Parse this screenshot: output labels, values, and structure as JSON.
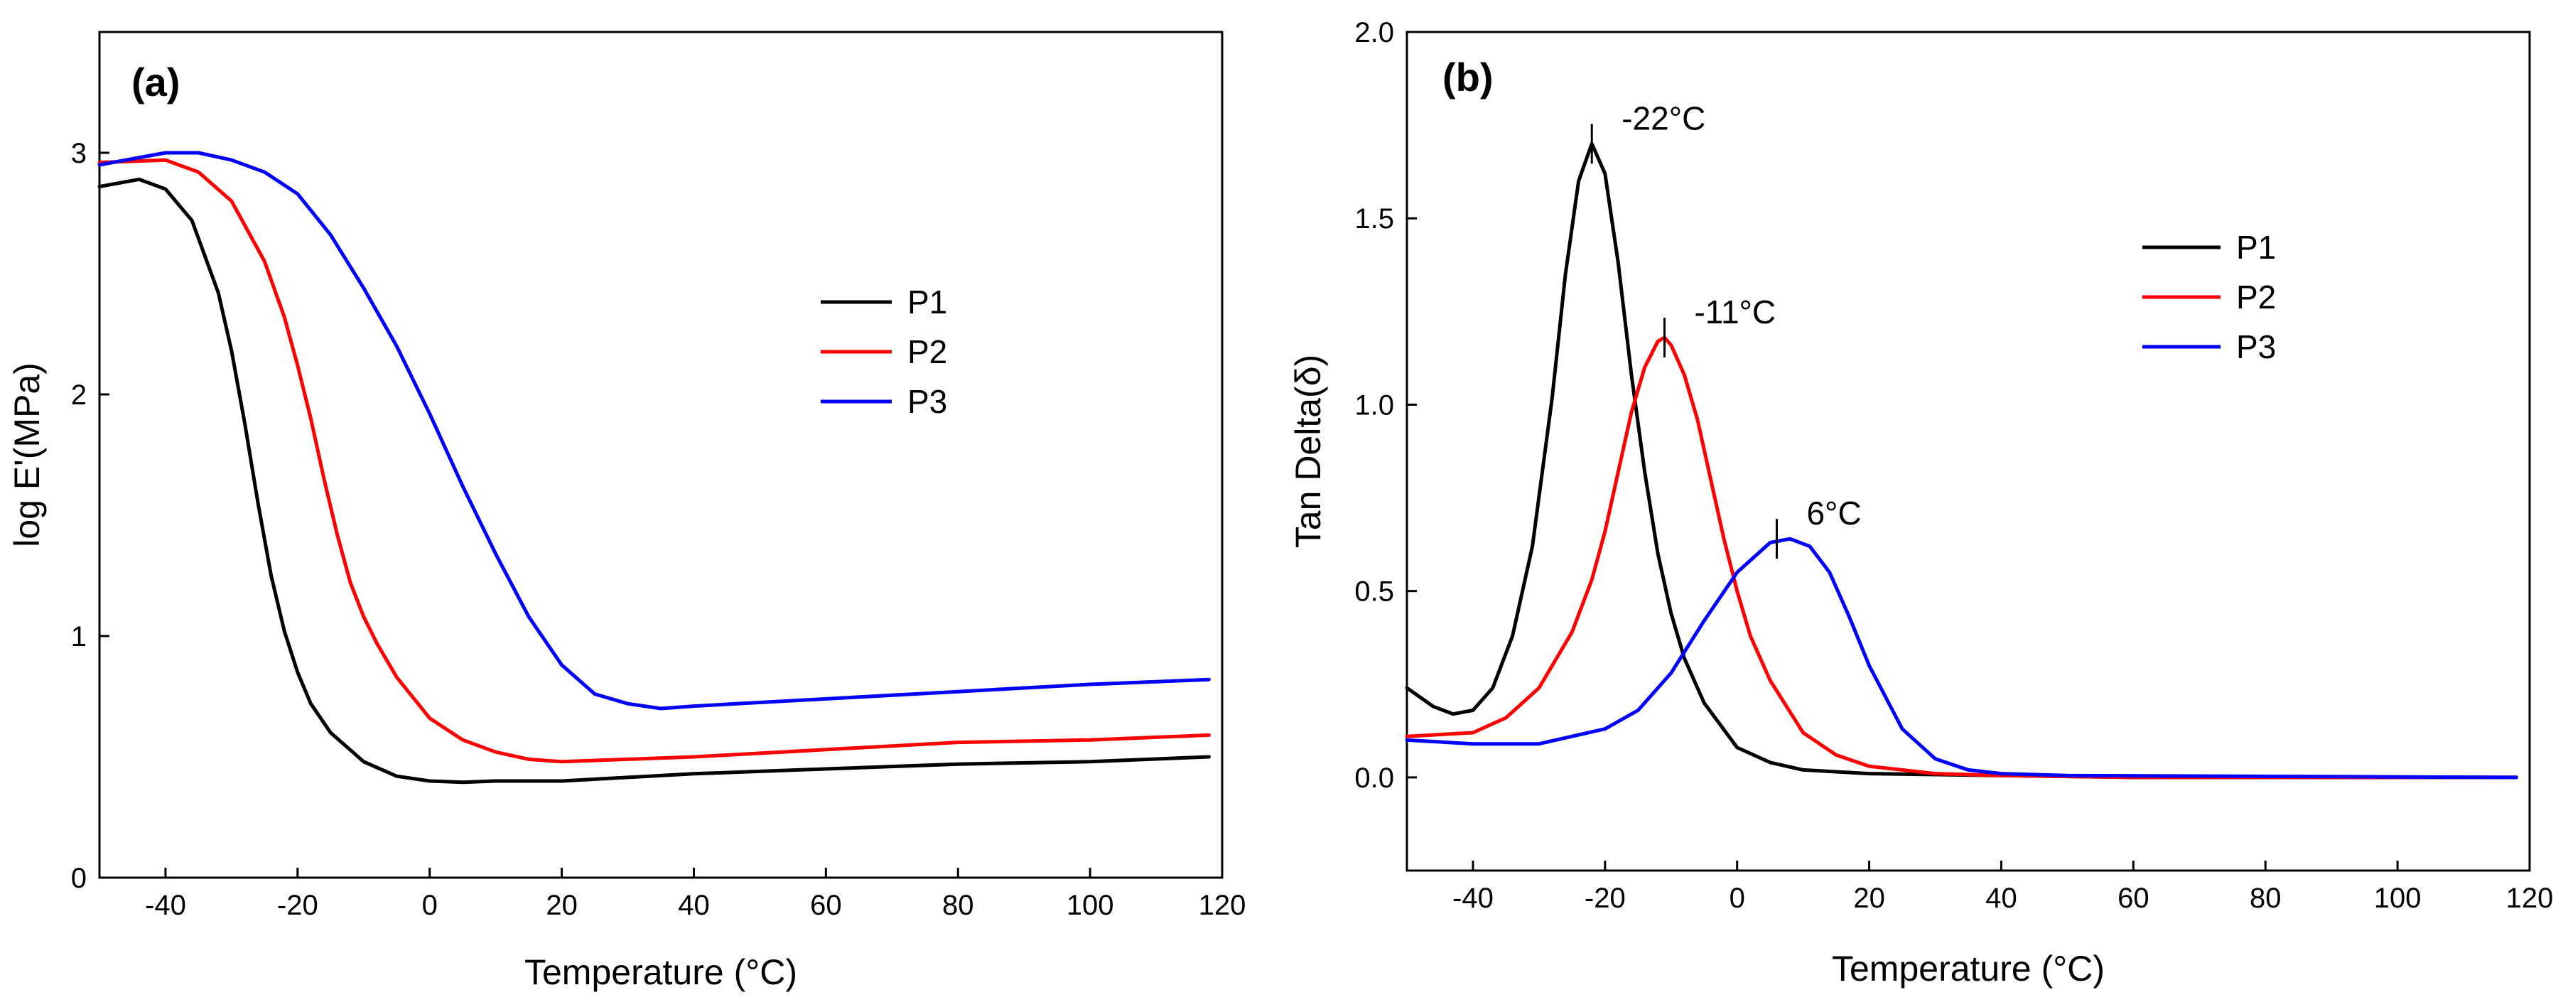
{
  "chart_data": [
    {
      "type": "line",
      "panel_label": "(a)",
      "xlabel": "Temperature (°C)",
      "ylabel": "log E'(MPa)",
      "xlim": [
        -50,
        120
      ],
      "ylim": [
        0,
        3.5
      ],
      "xticks": [
        -40,
        -20,
        0,
        20,
        40,
        60,
        80,
        100,
        120
      ],
      "yticks": [
        0,
        1,
        2,
        3
      ],
      "legend_position": "center-right",
      "series": [
        {
          "name": "P1",
          "color": "#000000",
          "x": [
            -50,
            -44,
            -40,
            -36,
            -32,
            -30,
            -28,
            -26,
            -24,
            -22,
            -20,
            -18,
            -15,
            -10,
            -5,
            0,
            5,
            10,
            20,
            40,
            60,
            80,
            100,
            118
          ],
          "y": [
            2.86,
            2.89,
            2.85,
            2.72,
            2.42,
            2.18,
            1.88,
            1.55,
            1.25,
            1.02,
            0.85,
            0.72,
            0.6,
            0.48,
            0.42,
            0.4,
            0.395,
            0.4,
            0.4,
            0.43,
            0.45,
            0.47,
            0.48,
            0.5
          ]
        },
        {
          "name": "P2",
          "color": "#ff0000",
          "x": [
            -50,
            -40,
            -35,
            -30,
            -25,
            -22,
            -20,
            -18,
            -16,
            -14,
            -12,
            -10,
            -8,
            -5,
            0,
            5,
            10,
            15,
            20,
            40,
            60,
            80,
            100,
            118
          ],
          "y": [
            2.96,
            2.97,
            2.92,
            2.8,
            2.55,
            2.32,
            2.12,
            1.9,
            1.65,
            1.42,
            1.22,
            1.08,
            0.97,
            0.83,
            0.66,
            0.57,
            0.52,
            0.49,
            0.48,
            0.5,
            0.53,
            0.56,
            0.57,
            0.59
          ]
        },
        {
          "name": "P3",
          "color": "#0000ff",
          "x": [
            -50,
            -40,
            -35,
            -30,
            -25,
            -20,
            -15,
            -10,
            -5,
            0,
            5,
            10,
            15,
            20,
            25,
            30,
            35,
            40,
            60,
            80,
            100,
            118
          ],
          "y": [
            2.95,
            3.0,
            3.0,
            2.97,
            2.92,
            2.83,
            2.66,
            2.44,
            2.2,
            1.92,
            1.62,
            1.34,
            1.08,
            0.88,
            0.76,
            0.72,
            0.7,
            0.71,
            0.74,
            0.77,
            0.8,
            0.82
          ]
        }
      ]
    },
    {
      "type": "line",
      "panel_label": "(b)",
      "xlabel": "Temperature (°C)",
      "ylabel": "Tan Delta(δ)",
      "xlim": [
        -50,
        120
      ],
      "ylim": [
        -0.25,
        2.0
      ],
      "xticks": [
        -40,
        -20,
        0,
        20,
        40,
        60,
        80,
        100,
        120
      ],
      "yticks": [
        0.0,
        0.5,
        1.0,
        1.5,
        2.0
      ],
      "ytick_labels": [
        "0.0",
        "0.5",
        "1.0",
        "1.5",
        "2.0"
      ],
      "legend_position": "upper-right",
      "annotations": [
        {
          "text": "-22°C",
          "x": -22,
          "y": 1.7
        },
        {
          "text": "-11°C",
          "x": -11,
          "y": 1.18
        },
        {
          "text": "6°C",
          "x": 6,
          "y": 0.64
        }
      ],
      "series": [
        {
          "name": "P1",
          "color": "#000000",
          "x": [
            -50,
            -46,
            -43,
            -40,
            -37,
            -34,
            -31,
            -28,
            -26,
            -24,
            -22,
            -20,
            -18,
            -16,
            -14,
            -12,
            -10,
            -8,
            -5,
            0,
            5,
            10,
            20,
            40,
            60,
            118
          ],
          "y": [
            0.24,
            0.19,
            0.17,
            0.18,
            0.24,
            0.38,
            0.62,
            1.02,
            1.35,
            1.6,
            1.7,
            1.62,
            1.38,
            1.08,
            0.82,
            0.6,
            0.44,
            0.32,
            0.2,
            0.08,
            0.04,
            0.02,
            0.01,
            0.005,
            0.0,
            0.0
          ]
        },
        {
          "name": "P2",
          "color": "#ff0000",
          "x": [
            -50,
            -40,
            -35,
            -30,
            -25,
            -22,
            -20,
            -18,
            -16,
            -14,
            -12,
            -11,
            -10,
            -8,
            -6,
            -4,
            -2,
            0,
            2,
            5,
            10,
            15,
            20,
            30,
            40,
            60,
            118
          ],
          "y": [
            0.11,
            0.12,
            0.16,
            0.24,
            0.39,
            0.53,
            0.66,
            0.82,
            0.98,
            1.1,
            1.17,
            1.18,
            1.16,
            1.08,
            0.96,
            0.8,
            0.64,
            0.5,
            0.38,
            0.26,
            0.12,
            0.06,
            0.03,
            0.01,
            0.005,
            0.0,
            0.0
          ]
        },
        {
          "name": "P3",
          "color": "#0000ff",
          "x": [
            -50,
            -40,
            -30,
            -20,
            -15,
            -10,
            -5,
            0,
            5,
            8,
            11,
            14,
            17,
            20,
            25,
            30,
            35,
            40,
            50,
            118
          ],
          "y": [
            0.1,
            0.09,
            0.09,
            0.13,
            0.18,
            0.28,
            0.42,
            0.55,
            0.63,
            0.64,
            0.62,
            0.55,
            0.43,
            0.3,
            0.13,
            0.05,
            0.02,
            0.01,
            0.005,
            0.0
          ]
        }
      ]
    }
  ]
}
